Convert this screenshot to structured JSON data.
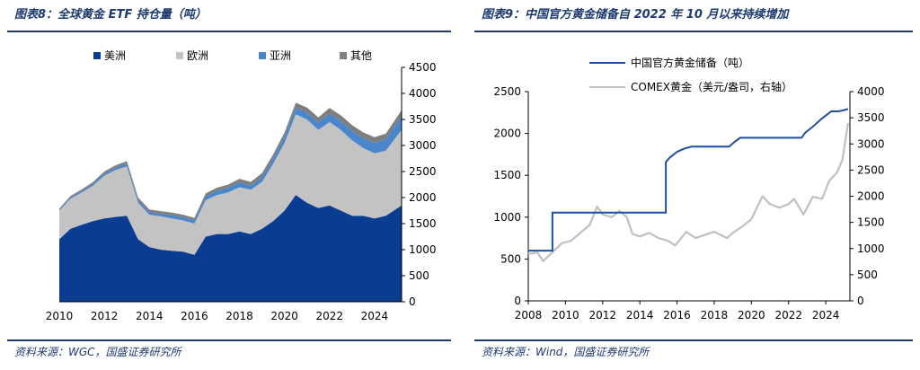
{
  "left": {
    "title": "图表8：全球黄金 ETF 持仓量（吨）",
    "source": "资料来源：WGC，国盛证券研究所"
  },
  "right": {
    "title": "图表9：中国官方黄金储备自 2022 年 10 月以来持续增加",
    "source": "资料来源：Wind，国盛证券研究所"
  },
  "colors": {
    "accent": "#1d3a6e",
    "americas": "#0a3d91",
    "europe": "#c3c3c3",
    "asia": "#4a86cc",
    "other": "#7f7f7f",
    "china_reserve": "#1f4e9c",
    "comex": "#c0c0c0"
  },
  "chart_data": [
    {
      "type": "area",
      "stacked": true,
      "title": "全球黄金 ETF 持仓量（吨）",
      "x": [
        2010,
        2010.5,
        2011,
        2011.5,
        2012,
        2012.5,
        2013,
        2013.5,
        2014,
        2014.5,
        2015,
        2015.5,
        2016,
        2016.5,
        2017,
        2017.5,
        2018,
        2018.5,
        2019,
        2019.5,
        2020,
        2020.5,
        2021,
        2021.5,
        2022,
        2022.5,
        2023,
        2023.5,
        2024,
        2024.5,
        2025.2
      ],
      "xticks": [
        "2010",
        "2012",
        "2014",
        "2016",
        "2018",
        "2020",
        "2022",
        "2024"
      ],
      "ylim": [
        0,
        4500
      ],
      "yticks": [
        "0",
        "500",
        "1000",
        "1500",
        "2000",
        "2500",
        "3000",
        "3500",
        "4000",
        "4500"
      ],
      "legend_position": "top",
      "series": [
        {
          "name": "美洲",
          "values": [
            1200,
            1400,
            1480,
            1550,
            1600,
            1630,
            1650,
            1200,
            1050,
            1000,
            980,
            960,
            900,
            1250,
            1300,
            1300,
            1350,
            1300,
            1400,
            1550,
            1750,
            2050,
            1900,
            1800,
            1850,
            1750,
            1650,
            1650,
            1600,
            1650,
            1850
          ]
        },
        {
          "name": "欧洲",
          "values": [
            550,
            580,
            620,
            680,
            820,
            900,
            950,
            700,
            620,
            640,
            620,
            600,
            600,
            700,
            750,
            800,
            850,
            850,
            900,
            1100,
            1300,
            1550,
            1600,
            1500,
            1600,
            1550,
            1450,
            1300,
            1250,
            1250,
            1450
          ]
        },
        {
          "name": "亚洲",
          "values": [
            20,
            25,
            30,
            35,
            40,
            45,
            50,
            50,
            50,
            50,
            60,
            60,
            60,
            70,
            80,
            90,
            90,
            80,
            90,
            100,
            110,
            120,
            130,
            140,
            160,
            170,
            180,
            190,
            200,
            220,
            260
          ]
        },
        {
          "name": "其他",
          "values": [
            20,
            25,
            30,
            35,
            40,
            45,
            50,
            50,
            50,
            50,
            50,
            50,
            50,
            60,
            60,
            60,
            70,
            70,
            80,
            80,
            90,
            100,
            100,
            100,
            110,
            110,
            110,
            110,
            110,
            110,
            120
          ]
        }
      ]
    },
    {
      "type": "line",
      "title": "中国官方黄金储备",
      "x": [
        2008,
        2009.3,
        2009.3,
        2015.4,
        2015.4,
        2015.6,
        2016.0,
        2016.4,
        2016.8,
        2018.8,
        2019.1,
        2019.4,
        2022.7,
        2022.9,
        2023.3,
        2023.8,
        2024.3,
        2024.7,
        2025.0,
        2025.2
      ],
      "xticks": [
        "2008",
        "2010",
        "2012",
        "2014",
        "2016",
        "2018",
        "2020",
        "2022",
        "2024"
      ],
      "ylim_left": [
        0,
        2500
      ],
      "yticks_left": [
        "0",
        "500",
        "1000",
        "1500",
        "2000",
        "2500"
      ],
      "ylim_right": [
        0,
        4000
      ],
      "yticks_right": [
        "0",
        "500",
        "1000",
        "1500",
        "2000",
        "2500",
        "3000",
        "3500",
        "4000"
      ],
      "legend_position": "top",
      "series": [
        {
          "name": "中国官方黄金储备（吨）",
          "axis": "left",
          "values": [
            600,
            600,
            1054,
            1054,
            1658,
            1710,
            1780,
            1820,
            1843,
            1843,
            1900,
            1948,
            1948,
            2010,
            2080,
            2180,
            2264,
            2264,
            2280,
            2292
          ]
        },
        {
          "name": "COMEX黄金（美元/盎司，右轴）",
          "axis": "right",
          "x": [
            2008,
            2008.5,
            2008.8,
            2009.3,
            2009.8,
            2010.3,
            2010.8,
            2011.3,
            2011.7,
            2012.0,
            2012.5,
            2012.9,
            2013.3,
            2013.6,
            2014.0,
            2014.5,
            2015.0,
            2015.5,
            2015.9,
            2016.5,
            2017.0,
            2017.5,
            2018.0,
            2018.7,
            2019.0,
            2019.5,
            2020.0,
            2020.6,
            2021.0,
            2021.5,
            2022.0,
            2022.3,
            2022.8,
            2023.3,
            2023.8,
            2024.2,
            2024.6,
            2024.9,
            2025.2
          ],
          "values": [
            900,
            920,
            760,
            930,
            1100,
            1150,
            1300,
            1450,
            1800,
            1650,
            1600,
            1720,
            1600,
            1280,
            1230,
            1300,
            1200,
            1150,
            1060,
            1320,
            1200,
            1260,
            1320,
            1200,
            1300,
            1420,
            1560,
            2000,
            1850,
            1780,
            1850,
            1950,
            1650,
            1990,
            1950,
            2300,
            2450,
            2700,
            3400
          ]
        }
      ]
    }
  ]
}
